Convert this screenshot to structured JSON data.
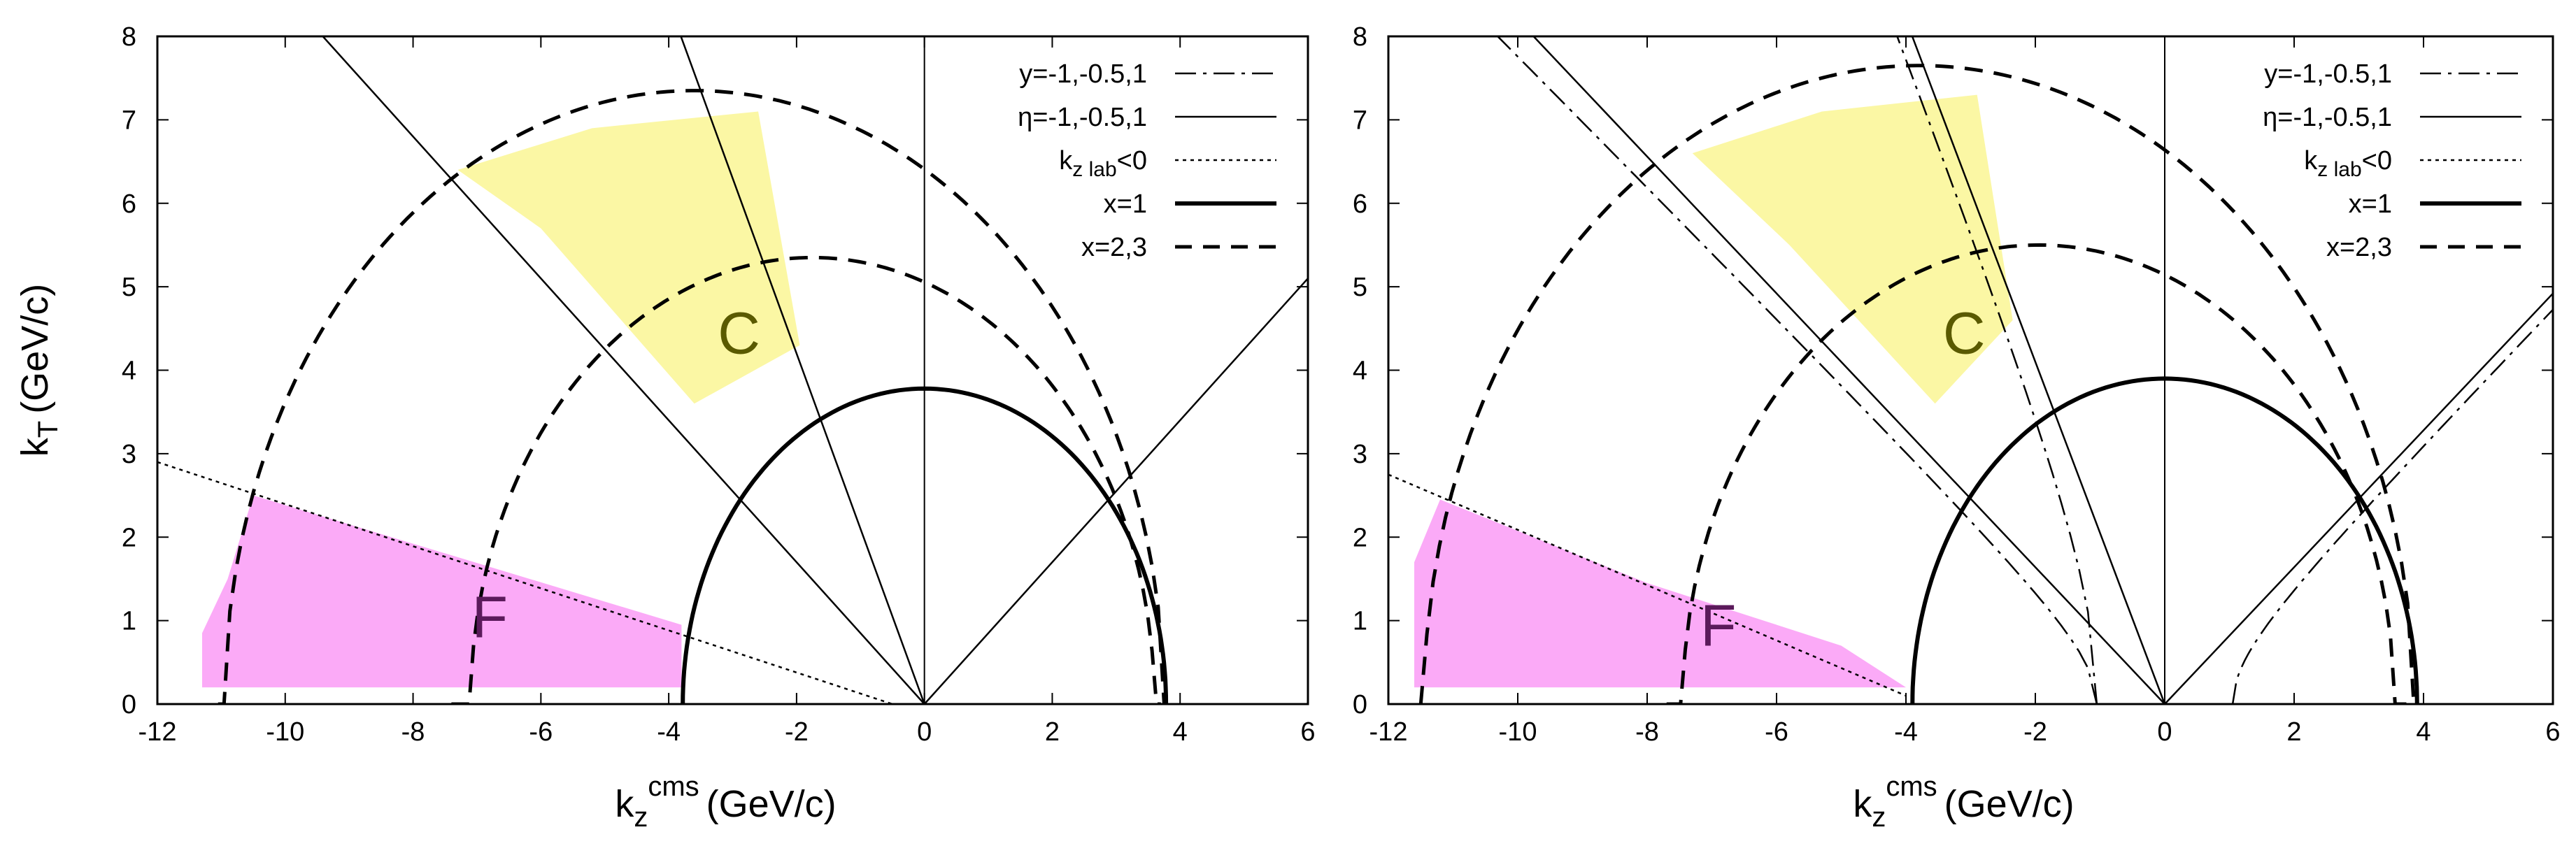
{
  "chart_data": [
    {
      "type": "line",
      "panel": "left",
      "xlabel": "k_z^cms (GeV/c)",
      "xlabel_main": "k",
      "xlabel_sub": "z",
      "xlabel_sup": "cms",
      "xlabel_unit": "(GeV/c)",
      "ylabel": "k_T (GeV/c)",
      "ylabel_main": "k",
      "ylabel_sub": "T",
      "ylabel_unit": "(GeV/c)",
      "xlim": [
        -12,
        6
      ],
      "ylim": [
        0,
        8
      ],
      "xticks": [
        "-12",
        "-10",
        "-8",
        "-6",
        "-4",
        "-2",
        "0",
        "2",
        "4",
        "6"
      ],
      "yticks": [
        "0",
        "1",
        "2",
        "3",
        "4",
        "5",
        "6",
        "7",
        "8"
      ],
      "legend_position": "top-right",
      "legend": [
        {
          "label": "y=-1,-0.5,1",
          "style": "dash-dot"
        },
        {
          "label": "η=-1,-0.5,1",
          "style": "solid"
        },
        {
          "label": "k",
          "sub": "z lab",
          "suffix": "<0",
          "style": "dotted"
        },
        {
          "label": "x=1",
          "style": "thick-solid"
        },
        {
          "label": "x=2,3",
          "style": "dashed"
        }
      ],
      "x1_half_width": 3.78,
      "x1_height": 3.78,
      "x1_center": 0,
      "x_dashed_arcs": [
        {
          "center": -1.75,
          "radius": 5.35,
          "start": -7.4,
          "end": 3.7
        },
        {
          "center": -3.6,
          "radius": 7.35,
          "start": -11.05,
          "end": 3.75
        }
      ],
      "eta_lines_slopes": [
        -0.85,
        -2.1,
        0.85
      ],
      "y_lines_slopes": [],
      "kz_lab_zero_line": [
        [
          -12,
          2.9
        ],
        [
          -0.5,
          0
        ]
      ],
      "regions": [
        {
          "label": "C",
          "color": "#fbf7a4",
          "label_color": "#5a5a00",
          "points": [
            [
              -7.3,
              6.4
            ],
            [
              -5.2,
              6.9
            ],
            [
              -2.6,
              7.1
            ],
            [
              -1.95,
              4.3
            ],
            [
              -3.6,
              3.6
            ],
            [
              -6.0,
              5.7
            ]
          ],
          "label_at": [
            -2.9,
            4.2
          ]
        },
        {
          "label": "F",
          "color": "#fbaaf7",
          "label_color": "#5b1a5b",
          "points": [
            [
              -10.5,
              2.5
            ],
            [
              -3.8,
              0.95
            ],
            [
              -3.8,
              0.2
            ],
            [
              -11.3,
              0.2
            ],
            [
              -11.3,
              0.85
            ],
            [
              -10.9,
              1.5
            ]
          ],
          "label_at": [
            -6.8,
            0.8
          ]
        }
      ]
    },
    {
      "type": "line",
      "panel": "right",
      "xlabel": "k_z^cms (GeV/c)",
      "xlabel_main": "k",
      "xlabel_sub": "z",
      "xlabel_sup": "cms",
      "xlabel_unit": "(GeV/c)",
      "ylabel": "",
      "xlim": [
        -12,
        6
      ],
      "ylim": [
        0,
        8
      ],
      "xticks": [
        "-12",
        "-10",
        "-8",
        "-6",
        "-4",
        "-2",
        "0",
        "2",
        "4",
        "6"
      ],
      "yticks": [
        "0",
        "1",
        "2",
        "3",
        "4",
        "5",
        "6",
        "7",
        "8"
      ],
      "legend_position": "top-right",
      "legend": [
        {
          "label": "y=-1,-0.5,1",
          "style": "dash-dot"
        },
        {
          "label": "η=-1,-0.5,1",
          "style": "solid"
        },
        {
          "label": "k",
          "sub": "z lab",
          "suffix": "<0",
          "style": "dotted"
        },
        {
          "label": "x=1",
          "style": "thick-solid"
        },
        {
          "label": "x=2,3",
          "style": "dashed"
        }
      ],
      "x1_half_width": 3.9,
      "x1_height": 3.9,
      "x1_center": 0,
      "x_dashed_arcs": [
        {
          "center": -1.95,
          "radius": 5.5,
          "start": -7.7,
          "end": 3.85
        },
        {
          "center": -3.8,
          "radius": 7.65,
          "start": -11.5,
          "end": 3.85
        }
      ],
      "eta_lines_slopes": [
        -0.82,
        -2.05,
        0.82
      ],
      "y_lines_slopes": [
        -0.78,
        -2.0,
        0.8
      ],
      "kz_lab_zero_line": [
        [
          -12,
          2.75
        ],
        [
          -4.0,
          0.1
        ]
      ],
      "regions": [
        {
          "label": "C",
          "color": "#fbf7a4",
          "label_color": "#5a5a00",
          "points": [
            [
              -7.3,
              6.6
            ],
            [
              -5.3,
              7.1
            ],
            [
              -2.9,
              7.3
            ],
            [
              -2.35,
              4.6
            ],
            [
              -3.55,
              3.6
            ],
            [
              -5.8,
              5.5
            ]
          ],
          "label_at": [
            -3.1,
            4.2
          ]
        },
        {
          "label": "F",
          "color": "#fbaaf7",
          "label_color": "#5b1a5b",
          "points": [
            [
              -11.2,
              2.45
            ],
            [
              -8.0,
              1.45
            ],
            [
              -5.0,
              0.7
            ],
            [
              -4.0,
              0.2
            ],
            [
              -11.6,
              0.2
            ],
            [
              -11.6,
              1.7
            ]
          ],
          "label_at": [
            -6.9,
            0.7
          ]
        }
      ]
    }
  ]
}
